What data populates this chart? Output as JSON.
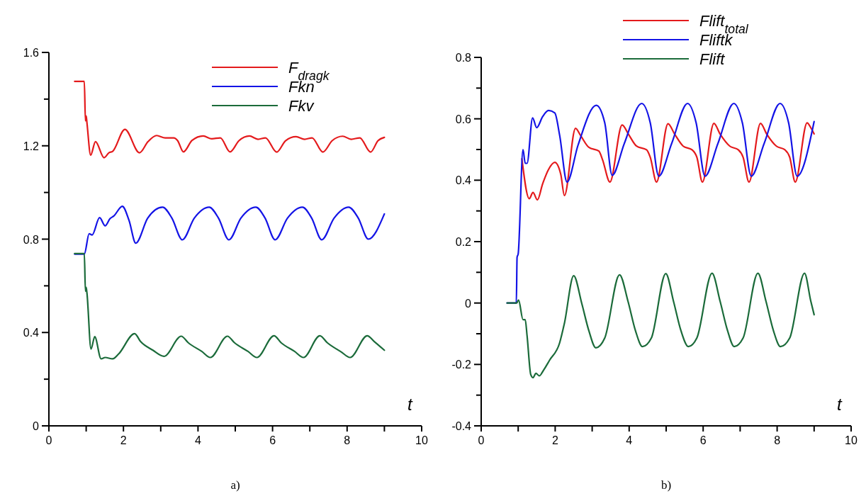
{
  "chart_data": [
    {
      "type": "line",
      "xlabel": "t",
      "annotations": [
        "a)"
      ],
      "legend": "top right",
      "xlim": [
        0,
        10
      ],
      "ylim": [
        0,
        1.6
      ],
      "xticks": [
        0,
        {
          "value": 1,
          "label": null
        },
        2,
        {
          "value": 3,
          "label": null
        },
        4,
        {
          "value": 5,
          "label": null
        },
        6,
        {
          "value": 7,
          "label": null
        },
        8,
        {
          "value": 9,
          "label": null
        },
        10
      ],
      "yticks": [
        0,
        {
          "value": 0.2,
          "label": null
        },
        0.4,
        {
          "value": 0.6,
          "label": null
        },
        0.8,
        {
          "value": 1,
          "label": null
        },
        1.2,
        {
          "value": 1.4,
          "label": null
        },
        1.6
      ],
      "series": [
        {
          "name": "F$_{dragk}$",
          "color": "#e41a1c",
          "x": [
            0.69,
            0.95,
            0.98,
            1.0,
            1.02,
            1.12,
            1.25,
            1.48,
            1.61,
            1.71,
            2.04,
            2.43,
            2.66,
            2.89,
            3.12,
            3.35,
            3.45,
            3.61,
            3.84,
            4.14,
            4.37,
            4.6,
            4.86,
            5.1,
            5.38,
            5.61,
            5.81,
            6.11,
            6.35,
            6.63,
            6.86,
            7.06,
            7.35,
            7.6,
            7.88,
            8.11,
            8.34,
            8.63,
            8.83,
            9.0
          ],
          "values": [
            1.476,
            1.476,
            1.307,
            1.328,
            1.3,
            1.16,
            1.218,
            1.149,
            1.17,
            1.176,
            1.27,
            1.17,
            1.218,
            1.244,
            1.234,
            1.234,
            1.223,
            1.174,
            1.223,
            1.242,
            1.23,
            1.234,
            1.174,
            1.222,
            1.242,
            1.228,
            1.234,
            1.173,
            1.222,
            1.239,
            1.228,
            1.234,
            1.173,
            1.222,
            1.241,
            1.228,
            1.234,
            1.173,
            1.222,
            1.236
          ]
        },
        {
          "name": "Fkn",
          "color": "#1414e6",
          "x": [
            0.69,
            0.95,
            1.08,
            1.16,
            1.36,
            1.51,
            1.64,
            1.74,
            1.97,
            2.15,
            2.33,
            2.65,
            3.05,
            3.3,
            3.58,
            3.9,
            4.3,
            4.55,
            4.83,
            5.15,
            5.55,
            5.8,
            6.07,
            6.4,
            6.8,
            7.05,
            7.32,
            7.65,
            8.04,
            8.3,
            8.57,
            9.0
          ],
          "values": [
            0.736,
            0.736,
            0.823,
            0.818,
            0.892,
            0.857,
            0.888,
            0.899,
            0.941,
            0.88,
            0.783,
            0.89,
            0.937,
            0.89,
            0.797,
            0.89,
            0.937,
            0.89,
            0.797,
            0.89,
            0.937,
            0.89,
            0.797,
            0.89,
            0.937,
            0.89,
            0.797,
            0.89,
            0.937,
            0.89,
            0.8,
            0.908
          ]
        },
        {
          "name": "Fkv",
          "color": "#1b6b3a",
          "x": [
            0.69,
            0.95,
            0.98,
            1.0,
            1.02,
            1.13,
            1.23,
            1.4,
            1.51,
            1.71,
            1.87,
            2.3,
            2.46,
            2.79,
            3.09,
            3.55,
            3.74,
            4.1,
            4.33,
            4.79,
            4.98,
            5.34,
            5.58,
            6.04,
            6.23,
            6.59,
            6.83,
            7.27,
            7.47,
            7.84,
            8.08,
            8.54,
            8.73,
            9.0
          ],
          "values": [
            0.738,
            0.738,
            0.577,
            0.593,
            0.57,
            0.329,
            0.382,
            0.287,
            0.293,
            0.287,
            0.308,
            0.395,
            0.361,
            0.324,
            0.298,
            0.384,
            0.356,
            0.319,
            0.293,
            0.384,
            0.356,
            0.319,
            0.293,
            0.386,
            0.356,
            0.319,
            0.293,
            0.386,
            0.356,
            0.317,
            0.293,
            0.386,
            0.361,
            0.324
          ]
        }
      ]
    },
    {
      "type": "line",
      "xlabel": "t",
      "annotations": [
        "b)"
      ],
      "legend": "top",
      "xlim": [
        0,
        10
      ],
      "ylim": [
        -0.4,
        0.8
      ],
      "xticks": [
        0,
        {
          "value": 1,
          "label": null
        },
        2,
        {
          "value": 3,
          "label": null
        },
        4,
        {
          "value": 5,
          "label": null
        },
        6,
        {
          "value": 7,
          "label": null
        },
        8,
        {
          "value": 9,
          "label": null
        },
        10
      ],
      "yticks": [
        -0.4,
        {
          "value": -0.3,
          "label": null
        },
        -0.2,
        {
          "value": -0.1,
          "label": null
        },
        0,
        {
          "value": 0.1,
          "label": null
        },
        0.2,
        {
          "value": 0.3,
          "label": null
        },
        0.4,
        {
          "value": 0.5,
          "label": null
        },
        0.6,
        {
          "value": 0.7,
          "label": null
        },
        0.8
      ],
      "series": [
        {
          "name": "Flift$_{total}$",
          "color": "#e41a1c",
          "x": [
            1.1,
            1.3,
            1.4,
            1.52,
            1.66,
            1.82,
            1.99,
            2.15,
            2.25,
            2.55,
            2.68,
            2.91,
            3.18,
            3.28,
            3.48,
            3.81,
            3.98,
            4.2,
            4.47,
            4.57,
            4.74,
            5.05,
            5.23,
            5.46,
            5.7,
            5.83,
            5.98,
            6.29,
            6.46,
            6.72,
            6.95,
            7.08,
            7.24,
            7.55,
            7.72,
            7.98,
            8.21,
            8.34,
            8.49,
            8.81,
            8.91,
            9.0
          ],
          "values": [
            0.47,
            0.34,
            0.36,
            0.336,
            0.388,
            0.435,
            0.458,
            0.42,
            0.35,
            0.569,
            0.547,
            0.507,
            0.495,
            0.467,
            0.394,
            0.58,
            0.55,
            0.511,
            0.499,
            0.475,
            0.394,
            0.584,
            0.55,
            0.511,
            0.499,
            0.475,
            0.394,
            0.585,
            0.55,
            0.511,
            0.499,
            0.475,
            0.394,
            0.585,
            0.55,
            0.511,
            0.499,
            0.475,
            0.394,
            0.587,
            0.571,
            0.551
          ]
        },
        {
          "name": "Fliftk",
          "color": "#1414e6",
          "x": [
            0.7,
            0.95,
            0.97,
            1.0,
            1.13,
            1.19,
            1.24,
            1.39,
            1.5,
            1.66,
            1.82,
            1.99,
            2.12,
            2.32,
            2.62,
            3.11,
            3.34,
            3.54,
            3.87,
            4.34,
            4.57,
            4.8,
            5.15,
            5.58,
            5.81,
            6.05,
            6.4,
            6.83,
            7.06,
            7.3,
            7.65,
            8.08,
            8.31,
            8.54,
            9.0
          ],
          "values": [
            0,
            0,
            0.149,
            0.16,
            0.5,
            0.455,
            0.455,
            0.603,
            0.571,
            0.607,
            0.627,
            0.619,
            0.547,
            0.394,
            0.515,
            0.644,
            0.587,
            0.416,
            0.52,
            0.65,
            0.587,
            0.413,
            0.52,
            0.65,
            0.587,
            0.413,
            0.52,
            0.65,
            0.587,
            0.413,
            0.52,
            0.65,
            0.587,
            0.413,
            0.591
          ]
        },
        {
          "name": "Flift",
          "color": "#1b6b3a",
          "x": [
            0.7,
            0.96,
            1.01,
            1.13,
            1.19,
            1.24,
            1.34,
            1.4,
            1.48,
            1.57,
            1.69,
            1.85,
            2.12,
            2.25,
            2.5,
            2.72,
            2.91,
            3.1,
            3.34,
            3.74,
            3.97,
            4.17,
            4.36,
            4.6,
            4.99,
            5.2,
            5.4,
            5.6,
            5.83,
            6.24,
            6.46,
            6.66,
            6.84,
            7.08,
            7.48,
            7.7,
            7.9,
            8.09,
            8.34,
            8.74,
            8.91,
            9.0
          ],
          "values": [
            0,
            0,
            0.01,
            -0.054,
            -0.054,
            -0.106,
            -0.233,
            -0.243,
            -0.229,
            -0.237,
            -0.218,
            -0.186,
            -0.13,
            -0.066,
            0.089,
            -0.002,
            -0.09,
            -0.146,
            -0.114,
            0.092,
            0.005,
            -0.09,
            -0.142,
            -0.114,
            0.096,
            0.005,
            -0.09,
            -0.142,
            -0.114,
            0.097,
            0.005,
            -0.09,
            -0.142,
            -0.114,
            0.097,
            0.005,
            -0.09,
            -0.142,
            -0.114,
            0.097,
            0.006,
            -0.038
          ]
        }
      ]
    }
  ]
}
